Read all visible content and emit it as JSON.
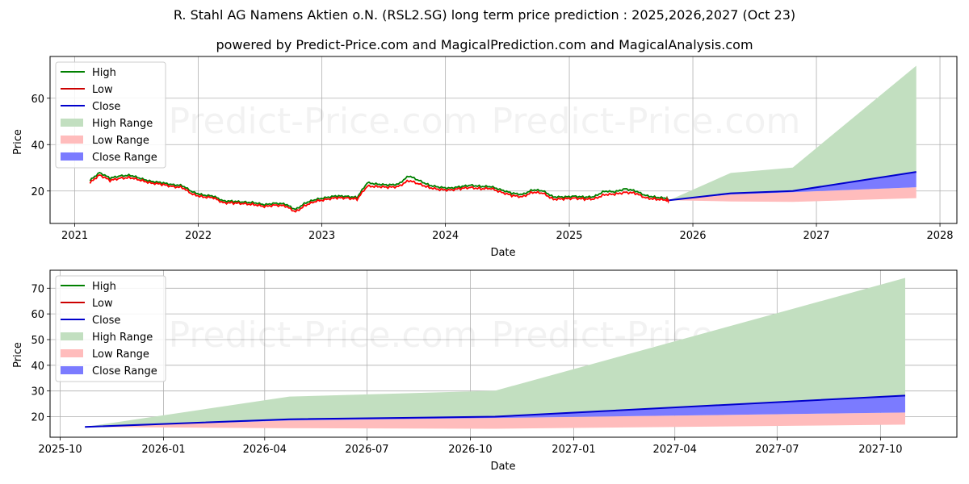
{
  "header": {
    "title": "R. Stahl AG Namens Aktien o.N. (RSL2.SG) long term price prediction : 2025,2026,2027 (Oct 23)",
    "subtitle": "powered by Predict-Price.com and MagicalPrediction.com and MagicalAnalysis.com"
  },
  "watermark": "Predict-Price.com",
  "colors": {
    "high": "#008000",
    "low": "#ff0000",
    "close": "#0000cc",
    "high_range": "#c2dfc0",
    "low_range": "#ffbcbc",
    "close_range": "#7b7bff",
    "grid": "#b0b0b0"
  },
  "legend": {
    "items": [
      {
        "label": "High",
        "type": "line",
        "color": "#008000"
      },
      {
        "label": "Low",
        "type": "line",
        "color": "#cc0000"
      },
      {
        "label": "Close",
        "type": "line",
        "color": "#0000cc"
      },
      {
        "label": "High Range",
        "type": "patch",
        "color": "#c2dfc0"
      },
      {
        "label": "Low Range",
        "type": "patch",
        "color": "#ffbcbc"
      },
      {
        "label": "Close Range",
        "type": "patch",
        "color": "#7b7bff"
      }
    ]
  },
  "chart_data": [
    {
      "type": "line",
      "title": "Long term history and prediction",
      "xlabel": "Date",
      "ylabel": "Price",
      "ylim": [
        6,
        78
      ],
      "xlim": [
        "2020-10-20",
        "2028-02-20"
      ],
      "grid": true,
      "legend_position": "upper left",
      "x_ticks": [
        "2021",
        "2022",
        "2023",
        "2024",
        "2025",
        "2026",
        "2027",
        "2028"
      ],
      "y_ticks": [
        20,
        40,
        60
      ],
      "history": {
        "dates": [
          "2021-02",
          "2021-03",
          "2021-04",
          "2021-05",
          "2021-06",
          "2021-07",
          "2021-08",
          "2021-09",
          "2021-10",
          "2021-11",
          "2021-12",
          "2022-01",
          "2022-02",
          "2022-03",
          "2022-04",
          "2022-05",
          "2022-06",
          "2022-07",
          "2022-08",
          "2022-09",
          "2022-10",
          "2022-11",
          "2022-12",
          "2023-01",
          "2023-02",
          "2023-03",
          "2023-04",
          "2023-05",
          "2023-06",
          "2023-07",
          "2023-08",
          "2023-09",
          "2023-10",
          "2023-11",
          "2023-12",
          "2024-01",
          "2024-02",
          "2024-03",
          "2024-04",
          "2024-05",
          "2024-06",
          "2024-07",
          "2024-08",
          "2024-09",
          "2024-10",
          "2024-11",
          "2024-12",
          "2025-01",
          "2025-02",
          "2025-03",
          "2025-04",
          "2025-05",
          "2025-06",
          "2025-07",
          "2025-08",
          "2025-09",
          "2025-10"
        ],
        "high": [
          24.5,
          28.0,
          25.5,
          26.5,
          26.8,
          25.3,
          24.2,
          23.5,
          22.8,
          22.3,
          19.5,
          18.3,
          17.7,
          15.8,
          15.5,
          15.2,
          15.0,
          14.0,
          14.8,
          14.3,
          12.0,
          15.0,
          16.3,
          17.3,
          17.8,
          17.7,
          17.2,
          23.5,
          23.0,
          22.5,
          23.0,
          26.5,
          24.5,
          22.5,
          21.5,
          21.3,
          21.8,
          22.5,
          22.0,
          21.8,
          20.5,
          19.0,
          18.5,
          20.5,
          20.0,
          17.5,
          17.3,
          17.8,
          17.3,
          17.5,
          20.0,
          19.5,
          21.0,
          20.0,
          18.0,
          17.3,
          16.8
        ],
        "low": [
          23.5,
          27.0,
          24.5,
          25.5,
          25.8,
          24.5,
          23.5,
          22.8,
          22.0,
          21.5,
          18.5,
          17.5,
          17.0,
          15.0,
          14.8,
          14.5,
          14.2,
          13.2,
          14.0,
          13.5,
          11.0,
          14.0,
          15.5,
          16.5,
          17.0,
          17.0,
          16.5,
          22.0,
          22.0,
          21.5,
          22.0,
          24.5,
          23.0,
          21.5,
          20.5,
          20.5,
          21.0,
          21.5,
          21.0,
          21.0,
          19.5,
          18.0,
          17.5,
          19.5,
          19.0,
          16.5,
          16.5,
          17.0,
          16.5,
          16.5,
          18.5,
          18.5,
          19.5,
          19.0,
          17.0,
          16.5,
          16.0
        ]
      },
      "forecast": {
        "dates": [
          "2025-10-23",
          "2026-04-23",
          "2026-10-23",
          "2027-10-23"
        ],
        "close": [
          16.0,
          19.0,
          20.0,
          28.2
        ],
        "high_range_upper": [
          16.0,
          27.8,
          30.1,
          74.0
        ],
        "close_range_lower": [
          16.0,
          18.5,
          19.5,
          21.6
        ],
        "low_range_upper": [
          16.0,
          18.5,
          19.5,
          21.6
        ],
        "low_range_lower": [
          16.0,
          15.5,
          15.3,
          16.9
        ]
      }
    },
    {
      "type": "line",
      "title": "Prediction detail",
      "xlabel": "Date",
      "ylabel": "Price",
      "ylim": [
        12,
        77
      ],
      "grid": true,
      "legend_position": "upper left",
      "x_ticks": [
        "2025-10",
        "2026-01",
        "2026-04",
        "2026-07",
        "2026-10",
        "2027-01",
        "2027-04",
        "2027-07",
        "2027-10"
      ],
      "y_ticks": [
        20,
        30,
        40,
        50,
        60,
        70
      ],
      "forecast": {
        "dates": [
          "2025-10-23",
          "2026-04-23",
          "2026-10-23",
          "2027-10-23"
        ],
        "close": [
          16.0,
          19.0,
          20.0,
          28.2
        ],
        "high_range_upper": [
          16.0,
          27.8,
          30.1,
          74.0
        ],
        "close_range_lower": [
          16.0,
          18.5,
          19.5,
          21.6
        ],
        "low_range_upper": [
          16.0,
          18.5,
          19.5,
          21.6
        ],
        "low_range_lower": [
          16.0,
          15.5,
          15.3,
          16.9
        ]
      }
    }
  ]
}
